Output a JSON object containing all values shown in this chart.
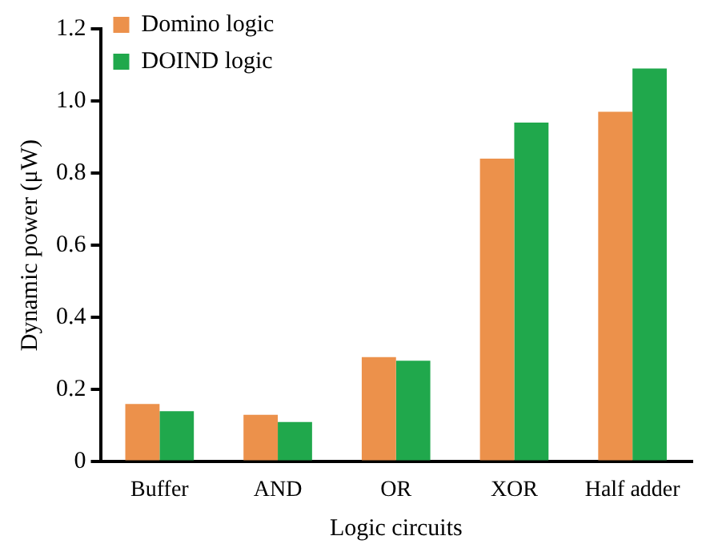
{
  "chart_data": {
    "type": "bar",
    "xlabel": "Logic circuits",
    "ylabel": "Dynamic power (μW)",
    "categories": [
      "Buffer",
      "AND",
      "OR",
      "XOR",
      "Half adder"
    ],
    "series": [
      {
        "name": "Domino logic",
        "color": "#ec914b",
        "values": [
          0.16,
          0.13,
          0.29,
          0.84,
          0.97
        ]
      },
      {
        "name": "DOIND logic",
        "color": "#20a84c",
        "values": [
          0.14,
          0.11,
          0.28,
          0.94,
          1.09
        ]
      }
    ],
    "ylim": [
      0,
      1.2
    ],
    "yticks": [
      0,
      0.2,
      0.4,
      0.6,
      0.8,
      {
        "value": 1,
        "label": "1.0"
      },
      1.2
    ],
    "grid": false,
    "legend": "top left"
  }
}
